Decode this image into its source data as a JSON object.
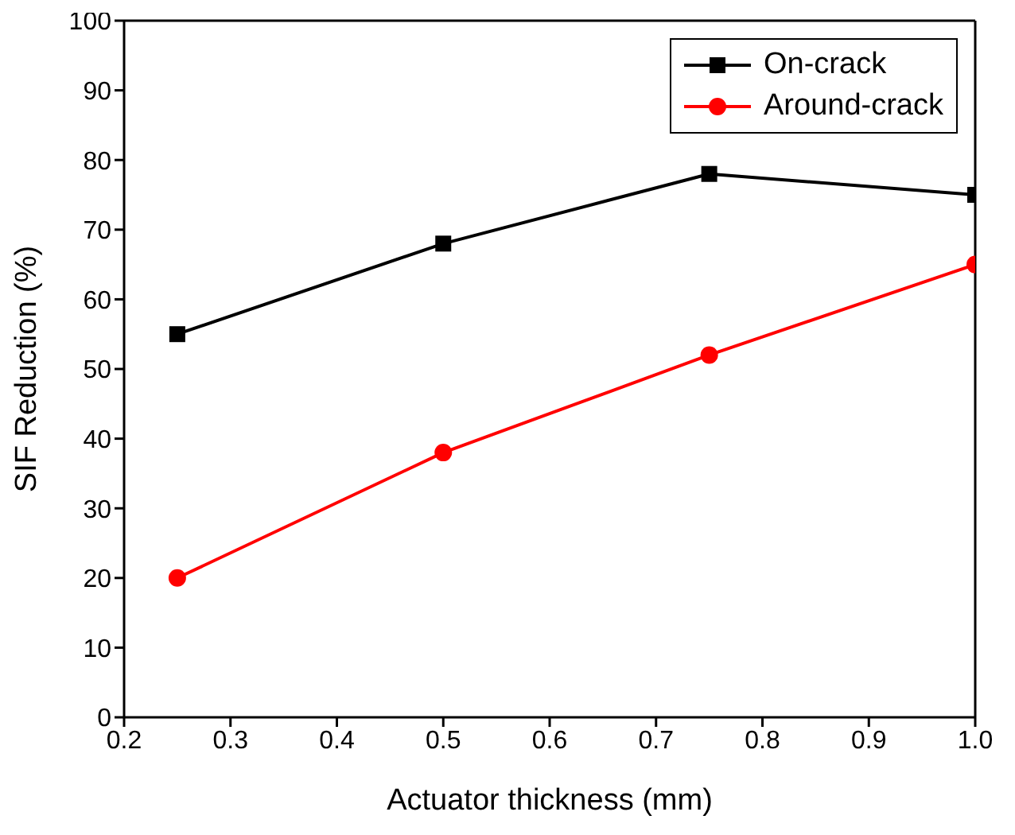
{
  "chart_data": {
    "type": "line",
    "xlabel": "Actuator thickness (mm)",
    "ylabel": "SIF Reduction (%)",
    "x": [
      0.25,
      0.5,
      0.75,
      1.0
    ],
    "series": [
      {
        "name": "On-crack",
        "color": "#000000",
        "marker": "square",
        "values": [
          55,
          68,
          78,
          75
        ]
      },
      {
        "name": "Around-crack",
        "color": "#ff0000",
        "marker": "circle",
        "values": [
          20,
          38,
          52,
          65
        ]
      }
    ],
    "xlim": [
      0.2,
      1.0
    ],
    "xticks": [
      0.2,
      0.3,
      0.4,
      0.5,
      0.6,
      0.7,
      0.8,
      0.9,
      {
        "value": 1,
        "label": "1.0"
      }
    ],
    "ylim": [
      0,
      100
    ],
    "yticks": [
      0,
      10,
      20,
      30,
      40,
      50,
      60,
      70,
      80,
      90,
      100
    ],
    "legend": "top right",
    "grid": false,
    "line_style": "solid"
  }
}
